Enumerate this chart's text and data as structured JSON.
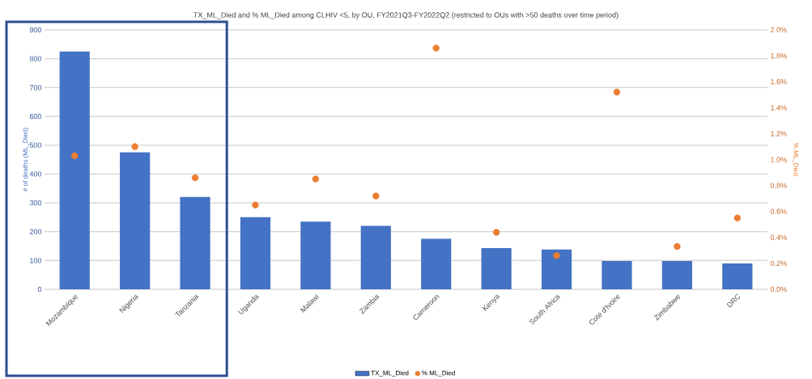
{
  "chart_data": {
    "type": "bar",
    "title": "TX_ML_Died and % ML_Died among CLHIV <5, by OU, FY2021Q3-FY2022Q2 (restricted to OUs with >50 deaths over time period)",
    "ylabel": "# of deaths (ML_Died)",
    "y2label": "% ML_Died",
    "categories": [
      "Mozambique",
      "Nigeria",
      "Tanzania",
      "Uganda",
      "Malawi",
      "Zambia",
      "Cameroon",
      "Kenya",
      "South Africa",
      "Cote d'Ivoire",
      "Zimbabwe",
      "DRC"
    ],
    "series": [
      {
        "name": "TX_ML_Died",
        "color": "#4472c4",
        "values": [
          825,
          475,
          320,
          250,
          235,
          220,
          175,
          143,
          138,
          98,
          98,
          90
        ]
      },
      {
        "name": "% ML_Died",
        "type": "scatter",
        "axis": "y2",
        "color": "#ed7d31",
        "values": [
          1.03,
          1.1,
          0.86,
          0.65,
          0.85,
          0.72,
          1.86,
          0.44,
          0.26,
          1.52,
          0.33,
          0.55
        ]
      }
    ],
    "ylim": [
      0,
      900
    ],
    "yticks": [
      0,
      100,
      200,
      300,
      400,
      500,
      600,
      700,
      800,
      900
    ],
    "y2lim": [
      0,
      2.0
    ],
    "y2ticks": [
      {
        "value": 0,
        "label": "0.0%"
      },
      {
        "value": 0.2,
        "label": "0.2%"
      },
      {
        "value": 0.4,
        "label": "0.4%"
      },
      {
        "value": 0.6,
        "label": "0.6%"
      },
      {
        "value": 0.8,
        "label": "0.8%"
      },
      {
        "value": 1.0,
        "label": "1.0%"
      },
      {
        "value": 1.2,
        "label": "1.2%"
      },
      {
        "value": 1.4,
        "label": "1.4%"
      },
      {
        "value": 1.6,
        "label": "1.6%"
      },
      {
        "value": 1.8,
        "label": "1.8%"
      },
      {
        "value": 2.0,
        "label": "2.0%"
      }
    ],
    "grid": "y",
    "legend": "bottom"
  }
}
